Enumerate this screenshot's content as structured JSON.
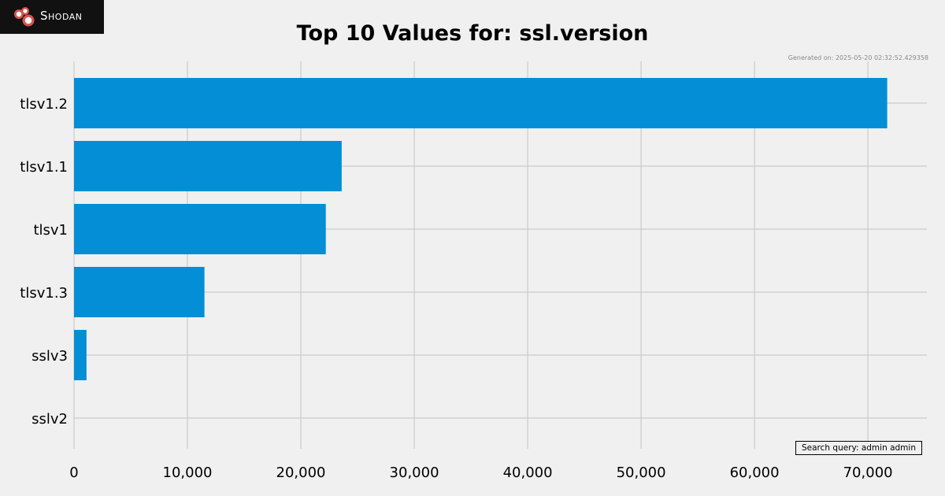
{
  "logo": {
    "text": "Shodan"
  },
  "generated_text": "Generated on: 2025-05-20 02:32:52.429358",
  "query_text": "Search query: admin admin",
  "colors": {
    "background": "#f0f0f0",
    "bar": "#038ed6",
    "grid": "#cbcbcb"
  },
  "chart_data": {
    "type": "bar",
    "orientation": "horizontal",
    "title": "Top 10 Values for: ssl.version",
    "xlabel": "",
    "ylabel": "",
    "categories": [
      "tlsv1.2",
      "tlsv1.1",
      "tlsv1",
      "tlsv1.3",
      "sslv3",
      "sslv2"
    ],
    "values": [
      71700,
      23600,
      22200,
      11500,
      1100,
      0
    ],
    "xlim": [
      0,
      75200
    ],
    "xticks": [
      0,
      10000,
      20000,
      30000,
      40000,
      50000,
      60000,
      70000
    ],
    "xtick_labels": [
      "0",
      "10,000",
      "20,000",
      "30,000",
      "40,000",
      "50,000",
      "60,000",
      "70,000"
    ],
    "grid": true,
    "legend": "none"
  }
}
